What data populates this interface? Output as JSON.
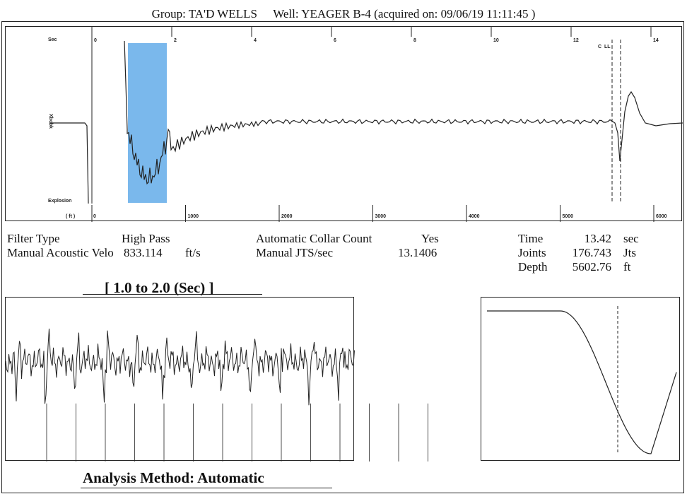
{
  "header": {
    "group": "Group: TA'D WELLS",
    "well": "Well: YEAGER B-4 (acquired on: 09/06/19 11:11:45 )"
  },
  "main_chart": {
    "y_axis_label": "Sec",
    "y_label_left": "Xbcbk",
    "explosion_label": "Explosion",
    "ft_label": "( ft )",
    "marker_label": "C  LL"
  },
  "params": {
    "filter_type_label": "Filter Type",
    "filter_type_value": "High Pass",
    "manual_velo_label": "Manual Acoustic Velo",
    "manual_velo_value": "833.114",
    "manual_velo_unit": "ft/s",
    "auto_collar_label": "Automatic Collar Count",
    "auto_collar_value": "Yes",
    "manual_jts_label": "Manual JTS/sec",
    "manual_jts_value": "13.1406",
    "time_label": "Time",
    "time_value": "13.42",
    "time_unit": "sec",
    "joints_label": "Joints",
    "joints_value": "176.743",
    "joints_unit": "Jts",
    "depth_label": "Depth",
    "depth_value": "5602.76",
    "depth_unit": "ft"
  },
  "zoom_range": "[ 1.0  to  2.0 (Sec) ]",
  "analysis_method": "Analysis Method:   Automatic",
  "colors": {
    "highlight": "#7ab8ec",
    "trace": "#222222"
  },
  "chart_data": [
    {
      "type": "line",
      "name": "acoustic-trace",
      "x_top_ticks": [
        0,
        2,
        4,
        6,
        8,
        10,
        12,
        14
      ],
      "x_top_unit": "Sec",
      "x_top_range": [
        0,
        14.5
      ],
      "x_bottom_ticks": [
        0,
        1000,
        2000,
        3000,
        4000,
        5000,
        6000
      ],
      "x_bottom_unit": "ft",
      "highlight_range_sec": [
        1.0,
        2.0
      ],
      "marker_lines_sec": [
        13.0,
        13.15
      ],
      "points": [
        [
          0.9,
          1.0
        ],
        [
          0.9,
          0.05
        ],
        [
          1.0,
          -0.2
        ],
        [
          1.15,
          -0.45
        ],
        [
          1.3,
          -0.65
        ],
        [
          1.45,
          -0.75
        ],
        [
          1.6,
          -0.55
        ],
        [
          1.75,
          -0.6
        ],
        [
          1.9,
          -0.35
        ],
        [
          2.1,
          -0.2
        ],
        [
          2.4,
          -0.05
        ],
        [
          2.8,
          0.05
        ],
        [
          3.3,
          0.03
        ],
        [
          3.8,
          0.04
        ],
        [
          4.5,
          0.02
        ],
        [
          5.5,
          0.03
        ],
        [
          6.5,
          0.02
        ],
        [
          7.5,
          0.02
        ],
        [
          8.5,
          0.01
        ],
        [
          9.5,
          0.01
        ],
        [
          10.5,
          0.0
        ],
        [
          11.5,
          0.0
        ],
        [
          12.5,
          0.0
        ],
        [
          13.0,
          0.0
        ],
        [
          13.1,
          -0.15
        ],
        [
          13.18,
          -0.5
        ],
        [
          13.25,
          -0.1
        ],
        [
          13.35,
          0.3
        ],
        [
          13.45,
          0.35
        ],
        [
          13.6,
          0.1
        ],
        [
          13.8,
          -0.05
        ],
        [
          14.2,
          0.0
        ],
        [
          14.5,
          0.0
        ]
      ]
    },
    {
      "type": "line",
      "name": "zoom-trace",
      "x_range_sec": [
        1.0,
        2.0
      ],
      "collar_count_visible": 14
    },
    {
      "type": "line",
      "name": "collar-filter-response",
      "note_marker": "dashed vertical line"
    }
  ]
}
